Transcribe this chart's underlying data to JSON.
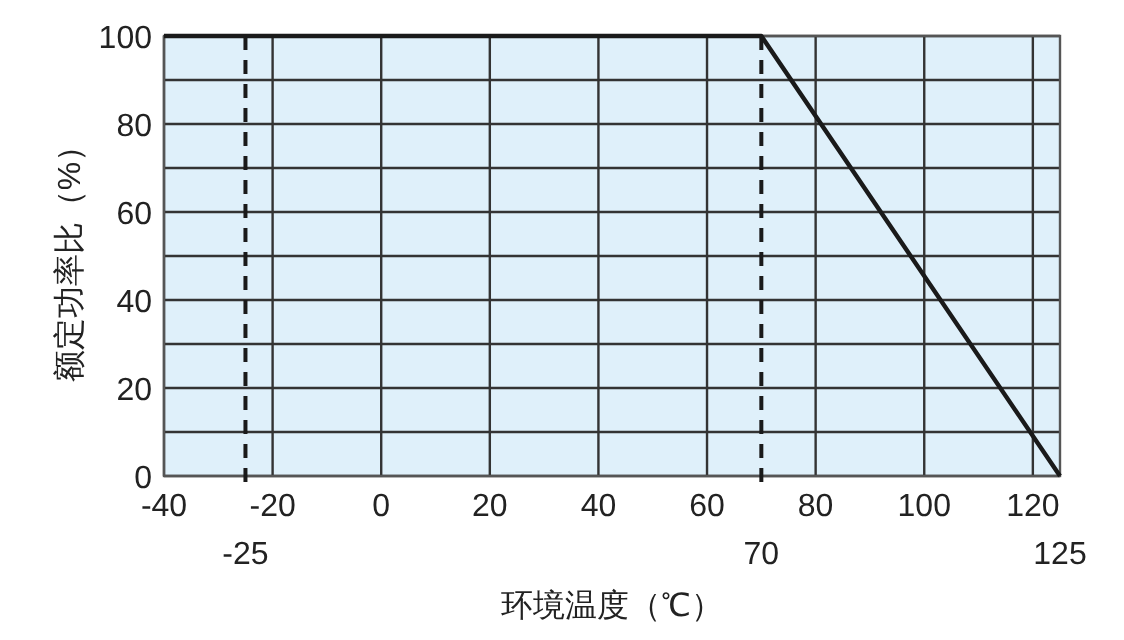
{
  "chart_data": {
    "type": "line",
    "xlabel": "环境温度（℃）",
    "ylabel": "额定功率比（%）",
    "x": [
      -40,
      70,
      125
    ],
    "series": [
      {
        "color": "#1a1a1a",
        "values": [
          100,
          100,
          0
        ]
      }
    ],
    "xlim": [
      -40,
      125
    ],
    "xticks": [
      -40,
      -20,
      0,
      20,
      40,
      60,
      80,
      100,
      120
    ],
    "annotations": [
      {
        "text": "125",
        "x": 125,
        "y": 0
      }
    ],
    "ylim": [
      0,
      100
    ],
    "yticks": [
      0,
      {
        "value": 10,
        "label": null
      },
      20,
      {
        "value": 30,
        "label": null
      },
      40,
      {
        "value": 50,
        "label": null
      },
      60,
      {
        "value": 70,
        "label": null
      },
      80,
      {
        "value": 90,
        "label": null
      },
      100
    ],
    "grid": true,
    "ref_lines": [
      {
        "axis": "x",
        "value": -25,
        "label": "-25",
        "line_style": "dashed",
        "color": "#1a1a1a"
      },
      {
        "axis": "x",
        "value": 70,
        "label": "70",
        "line_style": "dashed",
        "color": "#1a1a1a"
      }
    ],
    "line_style": "solid"
  }
}
